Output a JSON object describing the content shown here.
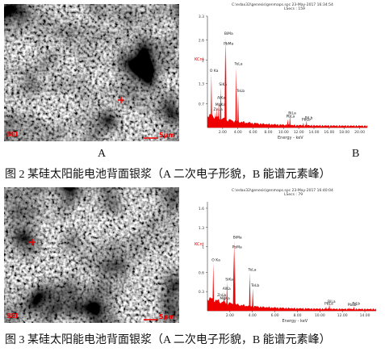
{
  "figures": [
    {
      "panel_labels": [
        "A",
        "B"
      ],
      "caption": "图 2  某硅太阳能电池背面银浆（A  二次电子形貌，B  能谱元素峰）",
      "sem": {
        "mode": "SEI",
        "scale": "5μm"
      },
      "spectrum": {
        "header": "C:\\edax32\\genesis\\genmaps.spc  23-May-2017 16:34:54",
        "lsecs": "LSecs : 159",
        "ylabel": "KCnt",
        "xlabel": "Energy - keV",
        "xlim": [
          0,
          21
        ],
        "ylim": [
          0,
          3.3
        ],
        "xticks": [
          {
            "value": 2,
            "label": "2.00"
          },
          {
            "value": 4,
            "label": "4.00"
          },
          {
            "value": 6,
            "label": "6.00"
          },
          {
            "value": 8,
            "label": "8.00"
          },
          {
            "value": 10,
            "label": "10.00"
          },
          {
            "value": 12,
            "label": "12.00"
          },
          {
            "value": 14,
            "label": "14.00"
          },
          {
            "value": 16,
            "label": "16.00"
          },
          {
            "value": 18,
            "label": "18.00"
          },
          {
            "value": 20,
            "label": "20.00"
          }
        ],
        "yticks": [
          0.7,
          1.3,
          2.0,
          2.6,
          3.3
        ],
        "peaks": [
          {
            "label": "O Ka",
            "energy": 0.52,
            "height": 1.6
          },
          {
            "label": "ZnLa",
            "energy": 1.01,
            "height": 0.45
          },
          {
            "label": "MgKa",
            "energy": 1.25,
            "height": 0.6
          },
          {
            "label": "AlKa",
            "energy": 1.49,
            "height": 0.8
          },
          {
            "label": "SiKa",
            "energy": 1.74,
            "height": 1.2
          },
          {
            "label": "PbMa",
            "energy": 2.34,
            "height": 2.4
          },
          {
            "label": "BiMa",
            "energy": 2.42,
            "height": 2.7
          },
          {
            "label": "TeLa",
            "energy": 3.77,
            "height": 1.8
          },
          {
            "label": "TeLb",
            "energy": 4.03,
            "height": 1.0
          },
          {
            "label": "PbLa",
            "energy": 10.55,
            "height": 0.25
          },
          {
            "label": "BiLa",
            "energy": 10.84,
            "height": 0.35
          },
          {
            "label": "PbLb",
            "energy": 12.61,
            "height": 0.15
          },
          {
            "label": "BiLb",
            "energy": 13.02,
            "height": 0.2
          }
        ]
      }
    },
    {
      "panel_labels": [],
      "caption": "图 3    某硅太阳能电池背面银浆（A  二次电子形貌，B  能谱元素峰）",
      "sem": {
        "mode": "SEI",
        "scale": "5μm"
      },
      "spectrum": {
        "header": "C:\\edax32\\genesis\\genmaps.spc  23-May-2017 16:40:04",
        "lsecs": "LSecs : 79",
        "ylabel": "KCnt",
        "xlabel": "Energy - keV",
        "xlim": [
          0,
          15
        ],
        "ylim": [
          0,
          1.7
        ],
        "xticks": [
          {
            "value": 2,
            "label": "2.00"
          },
          {
            "value": 4,
            "label": "4.00"
          },
          {
            "value": 6,
            "label": "6.00"
          },
          {
            "value": 8,
            "label": "8.00"
          },
          {
            "value": 10,
            "label": "10.00"
          },
          {
            "value": 12,
            "label": "12.00"
          },
          {
            "value": 14,
            "label": "14.00"
          }
        ],
        "yticks": [
          0.3,
          0.6,
          1.0,
          1.3,
          1.6
        ],
        "peaks": [
          {
            "label": "O Ka",
            "energy": 0.52,
            "height": 0.75
          },
          {
            "label": "ZnLa",
            "energy": 1.01,
            "height": 0.2
          },
          {
            "label": "MgKa",
            "energy": 1.25,
            "height": 0.15
          },
          {
            "label": "AlKa",
            "energy": 1.49,
            "height": 0.3
          },
          {
            "label": "SiKa",
            "energy": 1.74,
            "height": 0.45
          },
          {
            "label": "PbMa",
            "energy": 2.34,
            "height": 0.95
          },
          {
            "label": "BiMa",
            "energy": 2.42,
            "height": 1.1
          },
          {
            "label": "TeLa",
            "energy": 3.77,
            "height": 0.6
          },
          {
            "label": "TeLb",
            "energy": 4.03,
            "height": 0.35
          },
          {
            "label": "PbLa",
            "energy": 10.55,
            "height": 0.07
          },
          {
            "label": "BiLa",
            "energy": 10.84,
            "height": 0.1
          },
          {
            "label": "PbLb",
            "energy": 12.61,
            "height": 0.05
          },
          {
            "label": "BiLb",
            "energy": 13.02,
            "height": 0.07
          }
        ]
      }
    }
  ]
}
